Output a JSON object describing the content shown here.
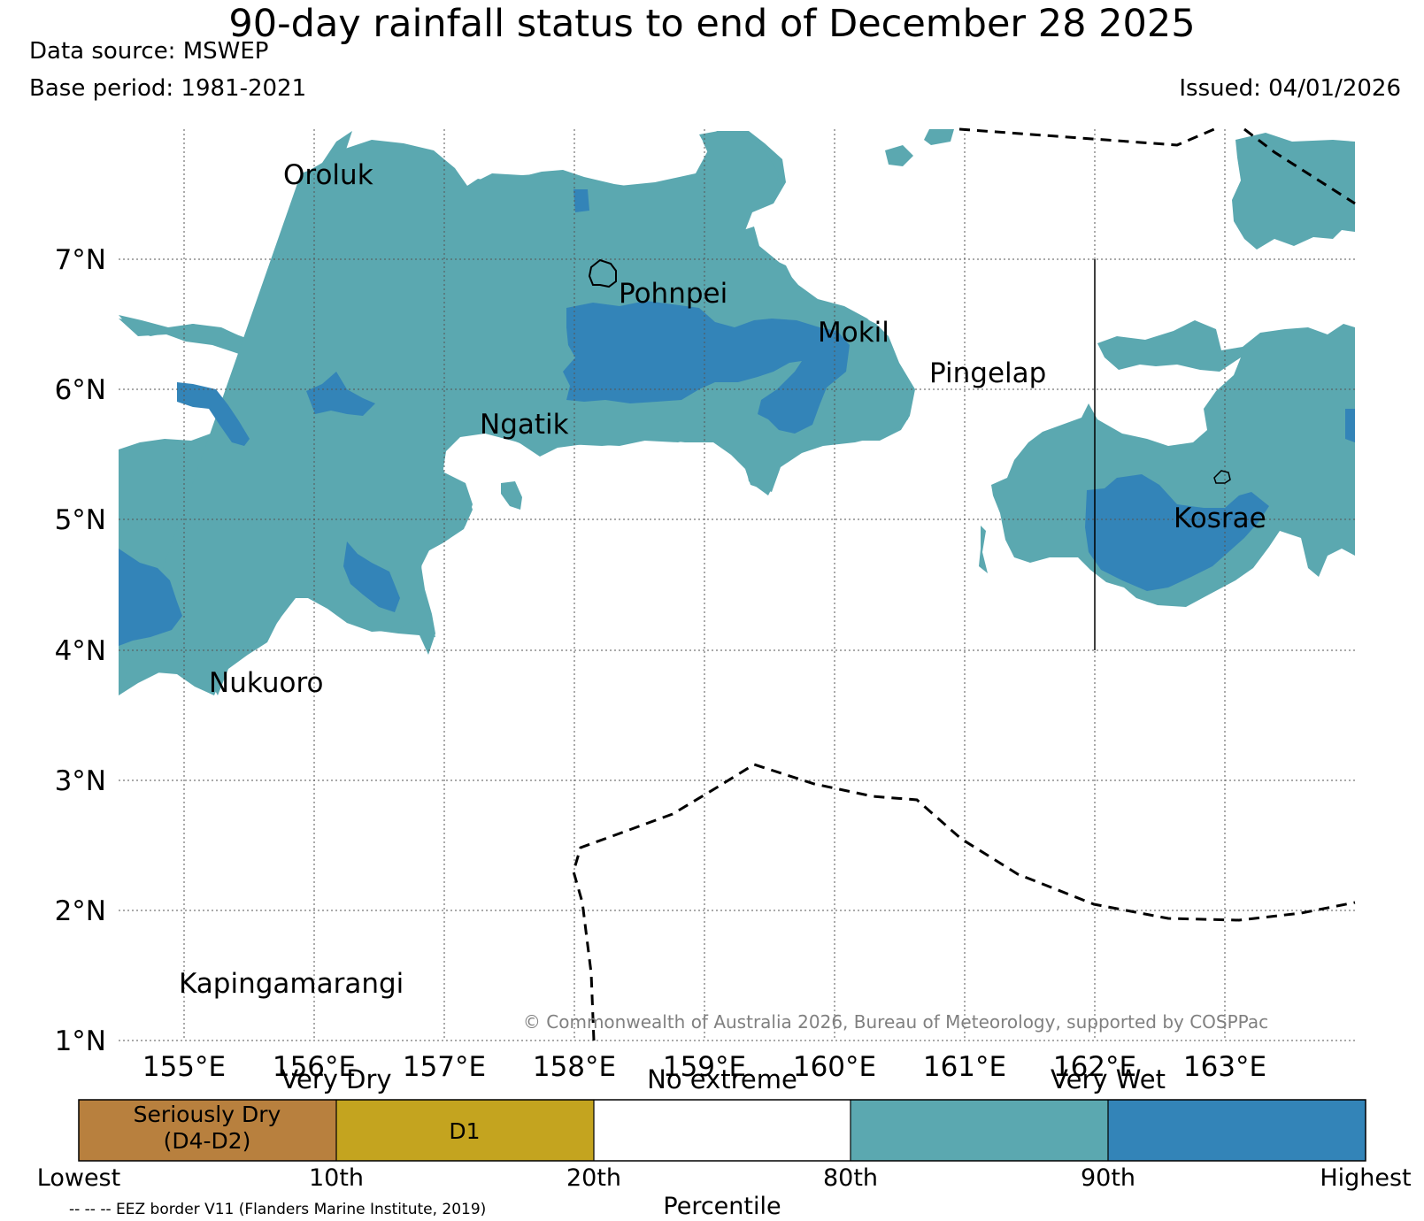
{
  "header": {
    "title": "90-day rainfall status to end of December 28 2025",
    "data_source": "Data source: MSWEP",
    "base_period": "Base period: 1981-2021",
    "issued": "Issued: 04/01/2026"
  },
  "map": {
    "lat_labels": [
      "7°N",
      "6°N",
      "5°N",
      "4°N",
      "3°N",
      "2°N",
      "1°N"
    ],
    "lon_labels": [
      "155°E",
      "156°E",
      "157°E",
      "158°E",
      "159°E",
      "160°E",
      "161°E",
      "162°E",
      "163°E"
    ],
    "places": [
      "Oroluk",
      "Pohnpei",
      "Mokil",
      "Pingelap",
      "Ngatik",
      "Kosrae",
      "Nukuoro",
      "Kapingamarangi"
    ],
    "copyright": "© Commonwealth of Australia 2026, Bureau of Meteorology, supported by COSPPac",
    "colors": {
      "very_wet": "#5ba8b0",
      "very_much_wet": "#3384b8",
      "seriously_dry": "#b8803e",
      "d1": "#c4a41f",
      "no_extreme": "#ffffff"
    }
  },
  "legend": {
    "groups": [
      "Very Dry",
      "No extreme",
      "Very Wet"
    ],
    "categories": [
      {
        "label_1": "Seriously Dry",
        "label_2": "(D4-D2)",
        "color": "#b8803e"
      },
      {
        "label_1": "D1",
        "label_2": "",
        "color": "#c4a41f"
      },
      {
        "label_1": "",
        "label_2": "",
        "color": "#ffffff"
      },
      {
        "label_1": "",
        "label_2": "",
        "color": "#5ba8b0"
      },
      {
        "label_1": "",
        "label_2": "",
        "color": "#3384b8"
      }
    ],
    "ticks": [
      "Lowest",
      "10th",
      "20th",
      "80th",
      "90th",
      "Highest"
    ],
    "axis_label": "Percentile",
    "eez_note": "-- -- -- EEZ border V11 (Flanders Marine Institute, 2019)"
  }
}
